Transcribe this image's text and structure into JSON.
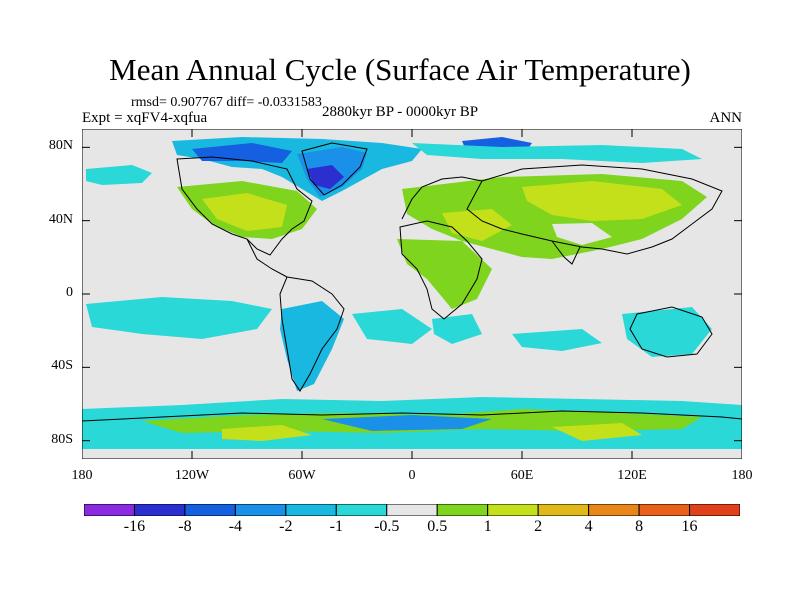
{
  "title": "Mean Annual Cycle (Surface Air Temperature)",
  "stats": "rmsd= 0.907767 diff= -0.0331583",
  "expt": "Expt = xqFV4-xqfua",
  "period": "2880kyr BP - 0000kyr BP",
  "season": "ANN",
  "chart_data": {
    "type": "heatmap",
    "title": "Mean Annual Cycle (Surface Air Temperature)",
    "variable": "Surface Air Temperature",
    "projection": "cylindrical equidistant",
    "lon_range": [
      -180,
      180
    ],
    "lat_range": [
      -90,
      90
    ],
    "xticks": [
      "180",
      "120W",
      "60W",
      "0",
      "60E",
      "120E",
      "180"
    ],
    "xtick_values": [
      -180,
      -120,
      -60,
      0,
      60,
      120,
      180
    ],
    "yticks": [
      "80N",
      "40N",
      "0",
      "40S",
      "80S"
    ],
    "ytick_values": [
      80,
      40,
      0,
      -40,
      -80
    ],
    "colorbar": {
      "levels": [
        -16,
        -8,
        -4,
        -2,
        -1,
        -0.5,
        0.5,
        1,
        2,
        4,
        8,
        16
      ],
      "labels": [
        "-16",
        "-8",
        "-4",
        "-2",
        "-1",
        "-0.5",
        "0.5",
        "1",
        "2",
        "4",
        "8",
        "16"
      ],
      "colors": [
        "#8a2be2",
        "#2b2fd0",
        "#1560e0",
        "#1a90e8",
        "#19b8e0",
        "#2ad8d8",
        "#e6e6e6",
        "#7fd41e",
        "#c4e01a",
        "#e0b81a",
        "#e8861a",
        "#e8601a",
        "#e0401a"
      ]
    }
  }
}
